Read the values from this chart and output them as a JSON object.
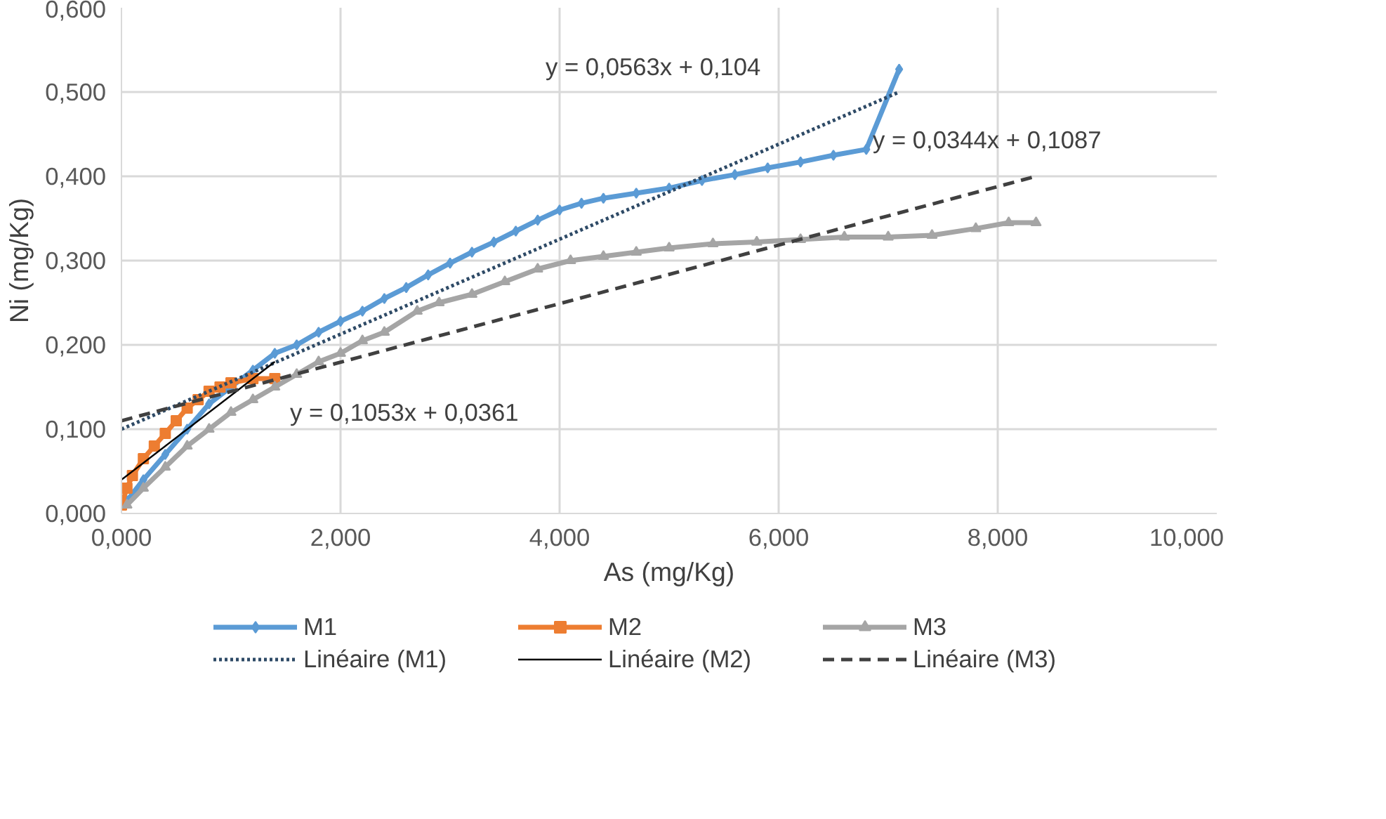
{
  "chart_data": {
    "type": "line",
    "xlabel": "As (mg/Kg)",
    "ylabel": "Ni (mg/Kg)",
    "xlim": [
      0,
      10
    ],
    "ylim": [
      0,
      0.6
    ],
    "xticks": [
      {
        "value": 0,
        "label": "0,000"
      },
      {
        "value": 2,
        "label": "2,000"
      },
      {
        "value": 4,
        "label": "4,000"
      },
      {
        "value": 6,
        "label": "6,000"
      },
      {
        "value": 8,
        "label": "8,000"
      },
      {
        "value": 10,
        "label": "10,000"
      }
    ],
    "yticks": [
      {
        "value": 0,
        "label": "0,000"
      },
      {
        "value": 0.1,
        "label": "0,100"
      },
      {
        "value": 0.2,
        "label": "0,200"
      },
      {
        "value": 0.3,
        "label": "0,300"
      },
      {
        "value": 0.4,
        "label": "0,400"
      },
      {
        "value": 0.5,
        "label": "0,500"
      },
      {
        "value": 0.6,
        "label": "0,600"
      }
    ],
    "grid": true,
    "legend": "bottom",
    "series": [
      {
        "name": "M1",
        "color": "#5b9bd5",
        "marker": "diamond",
        "line_style": "solid",
        "x": [
          0.05,
          0.2,
          0.4,
          0.6,
          0.8,
          1.0,
          1.2,
          1.4,
          1.6,
          1.8,
          2.0,
          2.2,
          2.4,
          2.6,
          2.8,
          3.0,
          3.2,
          3.4,
          3.6,
          3.8,
          4.0,
          4.2,
          4.4,
          4.7,
          5.0,
          5.3,
          5.6,
          5.9,
          6.2,
          6.5,
          6.8,
          7.1
        ],
        "values": [
          0.015,
          0.04,
          0.07,
          0.1,
          0.13,
          0.15,
          0.17,
          0.19,
          0.2,
          0.215,
          0.228,
          0.24,
          0.255,
          0.268,
          0.283,
          0.297,
          0.31,
          0.322,
          0.335,
          0.348,
          0.36,
          0.368,
          0.374,
          0.38,
          0.386,
          0.395,
          0.402,
          0.41,
          0.417,
          0.425,
          0.432,
          0.527
        ]
      },
      {
        "name": "M2",
        "color": "#ed7d31",
        "marker": "square",
        "line_style": "solid",
        "x": [
          0.0,
          0.05,
          0.1,
          0.2,
          0.3,
          0.4,
          0.5,
          0.6,
          0.7,
          0.8,
          0.9,
          1.0,
          1.2,
          1.4
        ],
        "values": [
          0.01,
          0.03,
          0.045,
          0.065,
          0.08,
          0.095,
          0.11,
          0.125,
          0.135,
          0.145,
          0.15,
          0.155,
          0.16,
          0.16
        ]
      },
      {
        "name": "M3",
        "color": "#a5a5a5",
        "marker": "triangle",
        "line_style": "solid",
        "x": [
          0.05,
          0.2,
          0.4,
          0.6,
          0.8,
          1.0,
          1.2,
          1.4,
          1.6,
          1.8,
          2.0,
          2.2,
          2.4,
          2.7,
          2.9,
          3.2,
          3.5,
          3.8,
          4.1,
          4.4,
          4.7,
          5.0,
          5.4,
          5.8,
          6.2,
          6.6,
          7.0,
          7.4,
          7.8,
          8.1,
          8.35
        ],
        "values": [
          0.01,
          0.03,
          0.055,
          0.08,
          0.1,
          0.12,
          0.135,
          0.15,
          0.165,
          0.18,
          0.19,
          0.205,
          0.215,
          0.24,
          0.25,
          0.26,
          0.275,
          0.29,
          0.3,
          0.305,
          0.31,
          0.315,
          0.32,
          0.322,
          0.325,
          0.328,
          0.328,
          0.33,
          0.338,
          0.345,
          0.345
        ]
      },
      {
        "name": "Linéaire (M1)",
        "color": "#2e4a66",
        "marker": "none",
        "line_style": "dotted",
        "x": [
          0,
          7.1
        ],
        "values": [
          0.1,
          0.5
        ]
      },
      {
        "name": "Linéaire (M2)",
        "color": "#000000",
        "marker": "none",
        "line_style": "solid",
        "x": [
          0,
          1.4
        ],
        "values": [
          0.04,
          0.18
        ]
      },
      {
        "name": "Linéaire (M3)",
        "color": "#404040",
        "marker": "none",
        "line_style": "dashed",
        "x": [
          0,
          8.35
        ],
        "values": [
          0.11,
          0.4
        ]
      }
    ],
    "annotations": [
      "y = 0,0563x + 0,104",
      "y = 0,0344x + 0,1087",
      "y = 0,1053x + 0,0361"
    ]
  }
}
